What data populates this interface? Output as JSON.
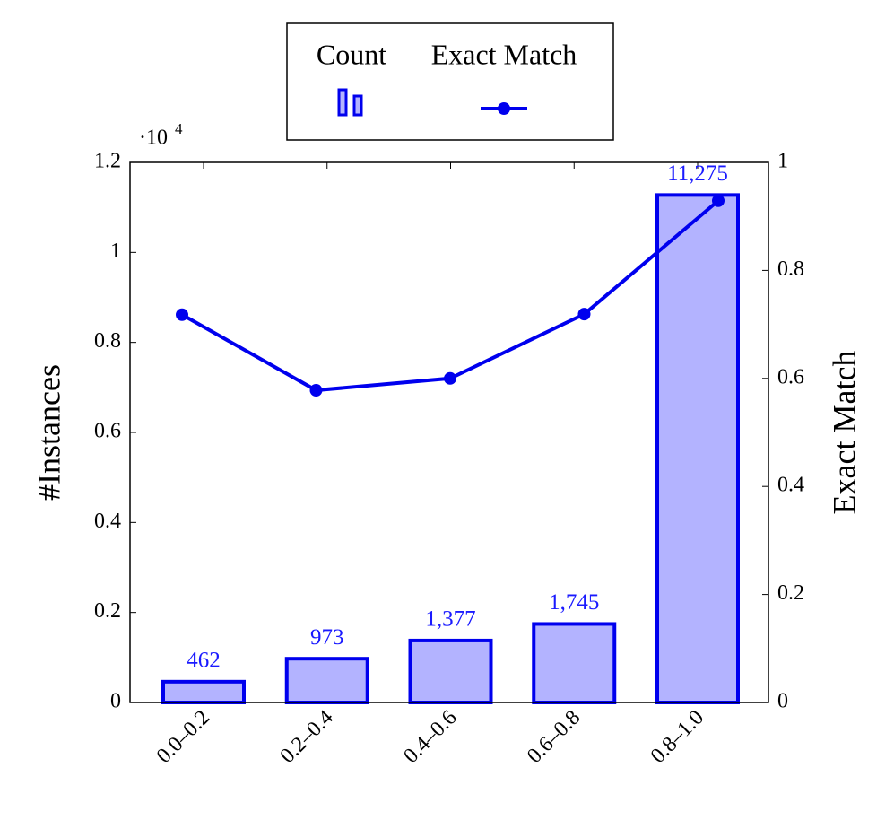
{
  "chart_data": {
    "type": "bar",
    "categories": [
      "0.0–0.2",
      "0.2–0.4",
      "0.4–0.6",
      "0.6–0.8",
      "0.8–1.0"
    ],
    "ylabel": "#Instances",
    "y2label": "Exact Match",
    "y_scale_base": "·10",
    "y_scale_exponent": "4",
    "ylim": [
      0,
      12000
    ],
    "yticks": [
      0,
      {
        "value": 2000,
        "label": "0.2"
      },
      {
        "value": 4000,
        "label": "0.4"
      },
      {
        "value": 6000,
        "label": "0.6"
      },
      {
        "value": 8000,
        "label": "0.8"
      },
      {
        "value": 10000,
        "label": "1"
      },
      {
        "value": 12000,
        "label": "1.2"
      }
    ],
    "y2lim": [
      0,
      1
    ],
    "y2ticks": [
      0,
      0.2,
      0.4,
      0.6,
      0.8,
      1
    ],
    "series": [
      {
        "name": "Count",
        "type": "bar",
        "color": "#0000ee",
        "fill": "#b3b3ff",
        "values": [
          462,
          973,
          1377,
          1745,
          11275
        ],
        "value_labels": [
          "462",
          "973",
          "1,377",
          "1,745",
          "11,275"
        ]
      },
      {
        "name": "Exact Match",
        "type": "line",
        "axis": "y2",
        "color": "#0000ee",
        "values": [
          0.718,
          0.578,
          0.6,
          0.719,
          0.929
        ]
      }
    ]
  }
}
